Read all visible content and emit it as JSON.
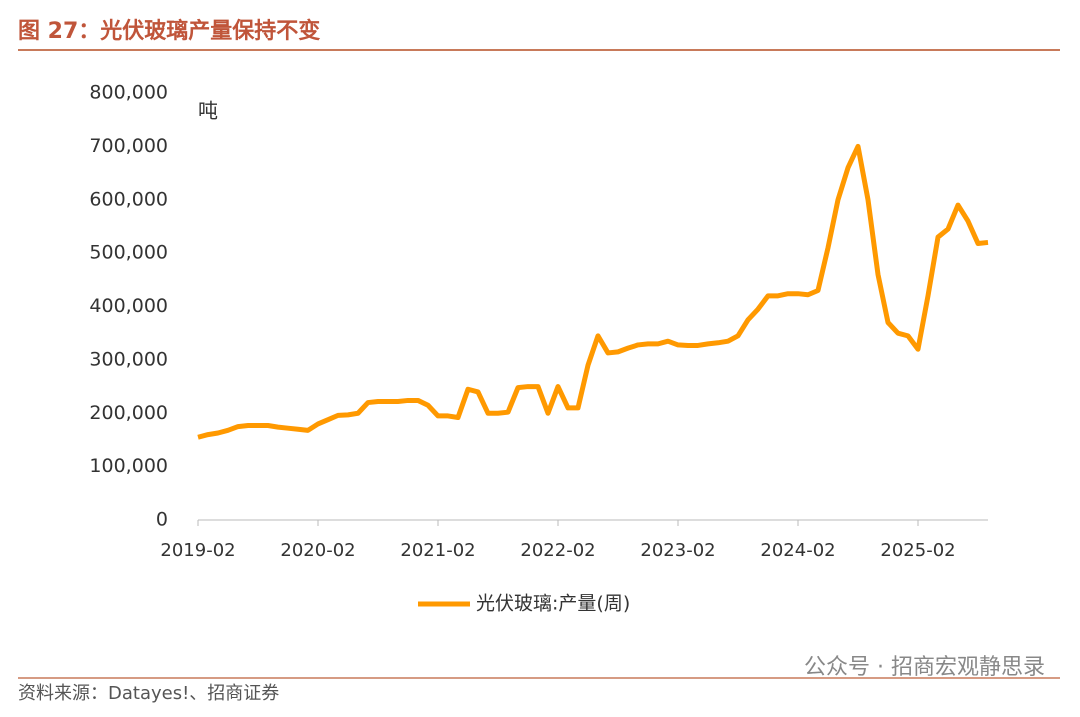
{
  "header": {
    "title": "图 27：光伏玻璃产量保持不变"
  },
  "chart_data": {
    "type": "line",
    "y_label": "吨",
    "x": [
      "2019-02",
      "2019-03",
      "2019-04",
      "2019-05",
      "2019-06",
      "2019-07",
      "2019-08",
      "2019-09",
      "2019-10",
      "2019-11",
      "2019-12",
      "2020-01",
      "2020-02",
      "2020-03",
      "2020-04",
      "2020-05",
      "2020-06",
      "2020-07",
      "2020-08",
      "2020-09",
      "2020-10",
      "2020-11",
      "2020-12",
      "2021-01",
      "2021-02",
      "2021-03",
      "2021-04",
      "2021-05",
      "2021-06",
      "2021-07",
      "2021-08",
      "2021-09",
      "2021-10",
      "2021-11",
      "2021-12",
      "2022-01",
      "2022-02",
      "2022-03",
      "2022-04",
      "2022-05",
      "2022-06",
      "2022-07",
      "2022-08",
      "2022-09",
      "2022-10",
      "2022-11",
      "2022-12",
      "2023-01",
      "2023-02",
      "2023-03",
      "2023-04",
      "2023-05",
      "2023-06",
      "2023-07",
      "2023-08",
      "2023-09",
      "2023-10",
      "2023-11",
      "2023-12",
      "2024-01",
      "2024-02",
      "2024-03",
      "2024-04",
      "2024-05",
      "2024-06",
      "2024-07",
      "2024-08",
      "2024-09",
      "2024-10",
      "2024-11",
      "2024-12",
      "2025-01",
      "2025-02",
      "2025-03",
      "2025-04",
      "2025-05",
      "2025-06",
      "2025-07",
      "2025-08",
      "2025-09"
    ],
    "xtick_every": 12,
    "series": [
      {
        "name": "光伏玻璃:产量(周)",
        "color": "#ff9900",
        "values": [
          155000,
          160000,
          163000,
          168000,
          175000,
          177000,
          177000,
          177000,
          174000,
          172000,
          170000,
          168000,
          180000,
          188000,
          196000,
          197000,
          200000,
          220000,
          222000,
          222000,
          222000,
          224000,
          224000,
          215000,
          195000,
          195000,
          192000,
          245000,
          240000,
          200000,
          200000,
          202000,
          248000,
          250000,
          250000,
          200000,
          250000,
          210000,
          210000,
          290000,
          345000,
          313000,
          315000,
          322000,
          328000,
          330000,
          330000,
          335000,
          328000,
          327000,
          327000,
          330000,
          332000,
          335000,
          345000,
          375000,
          395000,
          420000,
          420000,
          424000,
          424000,
          422000,
          430000,
          510000,
          600000,
          660000,
          700000,
          600000,
          460000,
          370000,
          350000,
          345000,
          320000,
          420000,
          530000,
          545000,
          590000,
          560000,
          518000,
          520000
        ]
      }
    ],
    "ylim": [
      0,
      800000
    ],
    "yticks": [
      0,
      {
        "value": 100000,
        "label": "100,000"
      },
      {
        "value": 200000,
        "label": "200,000"
      },
      {
        "value": 300000,
        "label": "300,000"
      },
      {
        "value": 400000,
        "label": "400,000"
      },
      {
        "value": 500000,
        "label": "500,000"
      },
      {
        "value": 600000,
        "label": "600,000"
      },
      {
        "value": 700000,
        "label": "700,000"
      },
      {
        "value": 800000,
        "label": "800,000"
      }
    ],
    "legend": "bottom"
  },
  "footer": {
    "source": "资料来源：Datayes!、招商证券",
    "watermark": "公众号 · 招商宏观静思录"
  }
}
